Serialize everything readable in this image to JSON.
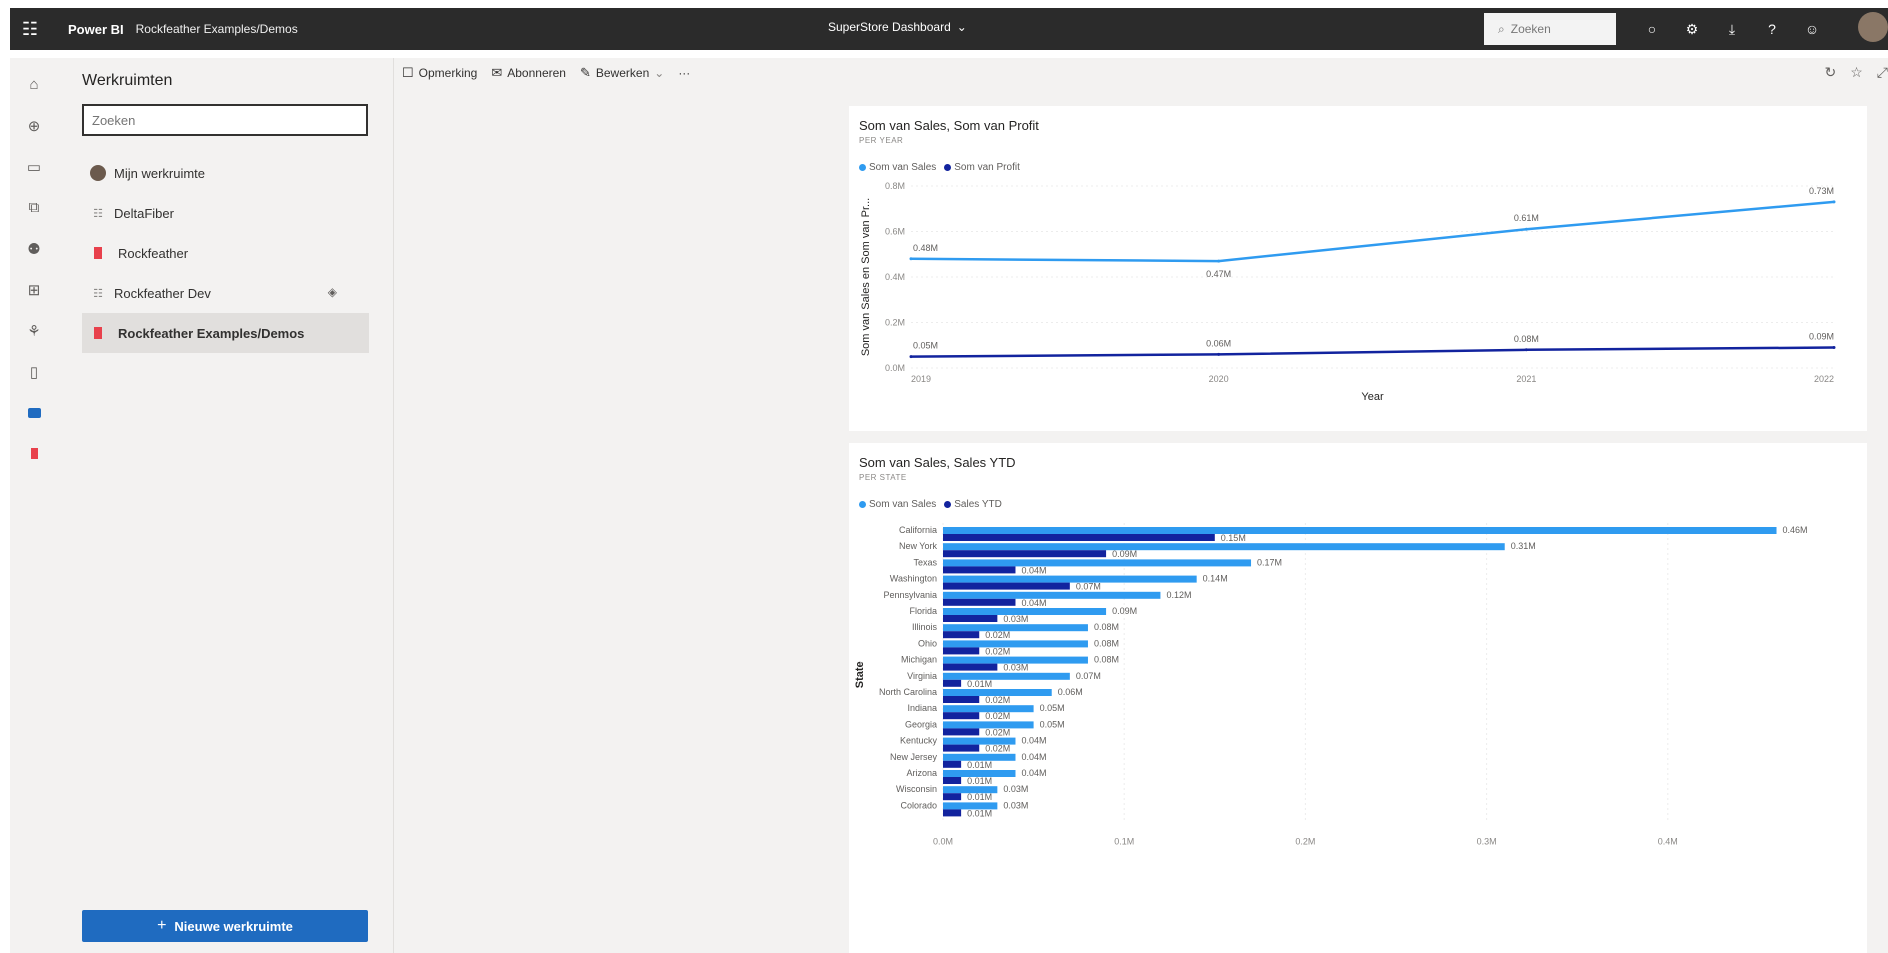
{
  "topbar": {
    "brand": "Power BI",
    "workspace": "Rockfeather Examples/Demos",
    "dashboard_title": "SuperStore Dashboard",
    "search_placeholder": "Zoeken",
    "icons": [
      "bell-icon",
      "gear-icon",
      "download-icon",
      "help-icon",
      "smiley-icon"
    ]
  },
  "rail": {
    "icons": [
      "home-icon",
      "create-icon",
      "browse-icon",
      "datahub-icon",
      "goals-icon",
      "apps-icon",
      "deployment-icon",
      "learn-icon",
      "workspaces-icon",
      "current-workspace-icon"
    ]
  },
  "workspaces": {
    "title": "Werkruimten",
    "search_placeholder": "Zoeken",
    "items": [
      {
        "label": "Mijn werkruimte",
        "icon": "avatar-icon"
      },
      {
        "label": "DeltaFiber",
        "icon": "group-icon"
      },
      {
        "label": "Rockfeather",
        "icon": "red-flag-icon"
      },
      {
        "label": "Rockfeather Dev",
        "icon": "group-icon"
      },
      {
        "label": "Rockfeather Examples/Demos",
        "icon": "red-flag-icon",
        "active": true
      }
    ],
    "new_button": "Nieuwe werkruimte"
  },
  "actions": {
    "comment": "Opmerking",
    "subscribe": "Abonneren",
    "edit": "Bewerken",
    "more": "···"
  },
  "colors": {
    "sales": "#2f9bf0",
    "profit": "#12239e",
    "sales_ytd": "#12239e",
    "topbar": "#2b2b2b",
    "primary_button": "#1f6bc0"
  },
  "chart_data": [
    {
      "type": "line",
      "title": "Som van Sales, Som van Profit",
      "subtitle": "PER YEAR",
      "xlabel": "Year",
      "ylabel": "Som van Sales en Som van Pr...",
      "x": [
        "2019",
        "2020",
        "2021",
        "2022"
      ],
      "ylim": [
        0,
        0.8
      ],
      "yticks": [
        "0.0M",
        "0.2M",
        "0.4M",
        "0.6M",
        "0.8M"
      ],
      "series": [
        {
          "name": "Som van Sales",
          "values": [
            0.48,
            0.47,
            0.61,
            0.73
          ],
          "labels": [
            "0.48M",
            "0.47M",
            "0.61M",
            "0.73M"
          ]
        },
        {
          "name": "Som van Profit",
          "values": [
            0.05,
            0.06,
            0.08,
            0.09
          ],
          "labels": [
            "0.05M",
            "0.06M",
            "0.08M",
            "0.09M"
          ]
        }
      ],
      "legend": "top-left",
      "grid": true
    },
    {
      "type": "bar",
      "orientation": "horizontal",
      "title": "Som van Sales, Sales YTD",
      "subtitle": "PER STATE",
      "ylabel": "State",
      "categories": [
        "California",
        "New York",
        "Texas",
        "Washington",
        "Pennsylvania",
        "Florida",
        "Illinois",
        "Ohio",
        "Michigan",
        "Virginia",
        "North Carolina",
        "Indiana",
        "Georgia",
        "Kentucky",
        "New Jersey",
        "Arizona",
        "Wisconsin",
        "Colorado"
      ],
      "xlim": [
        0,
        0.5
      ],
      "xticks": [
        "0.0M",
        "0.1M",
        "0.2M",
        "0.3M",
        "0.4M"
      ],
      "series": [
        {
          "name": "Som van Sales",
          "values": [
            0.46,
            0.31,
            0.17,
            0.14,
            0.12,
            0.09,
            0.08,
            0.08,
            0.08,
            0.07,
            0.06,
            0.05,
            0.05,
            0.04,
            0.04,
            0.04,
            0.03,
            0.03
          ],
          "labels": [
            "0.46M",
            "0.31M",
            "0.17M",
            "0.14M",
            "0.12M",
            "0.09M",
            "0.08M",
            "0.08M",
            "0.08M",
            "0.07M",
            "0.06M",
            "0.05M",
            "0.05M",
            "0.04M",
            "0.04M",
            "0.04M",
            "0.03M",
            "0.03M"
          ]
        },
        {
          "name": "Sales YTD",
          "values": [
            0.15,
            0.09,
            0.04,
            0.07,
            0.04,
            0.03,
            0.02,
            0.02,
            0.03,
            0.01,
            0.02,
            0.02,
            0.02,
            0.02,
            0.01,
            0.01,
            0.01,
            0.01
          ],
          "labels": [
            "0.15M",
            "0.09M",
            "0.04M",
            "0.07M",
            "0.04M",
            "0.03M",
            "0.02M",
            "0.02M",
            "0.03M",
            "0.01M",
            "0.02M",
            "0.02M",
            "0.02M",
            "0.02M",
            "0.01M",
            "0.01M",
            "0.01M",
            "0.01M"
          ]
        }
      ],
      "legend": "top-left",
      "grid": true
    }
  ]
}
